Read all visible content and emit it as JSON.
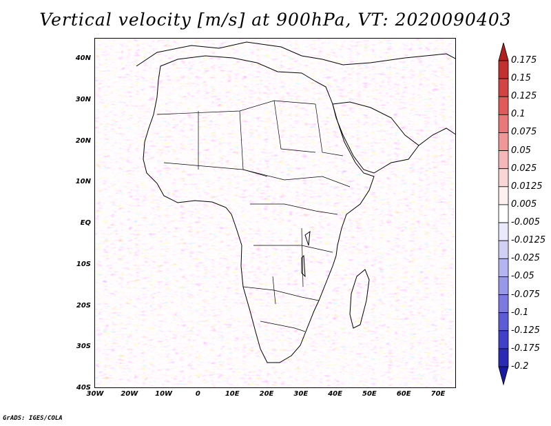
{
  "title": "Vertical velocity [m/s] at 900hPa, VT: 2020090403",
  "footer": "GrADS: IGES/COLA",
  "map": {
    "lat_labels": [
      "40N",
      "30N",
      "20N",
      "10N",
      "EQ",
      "10S",
      "20S",
      "30S",
      "40S"
    ],
    "lon_labels": [
      "30W",
      "20W",
      "10W",
      "0",
      "10E",
      "20E",
      "30E",
      "40E",
      "50E",
      "60E",
      "70E"
    ]
  },
  "colorbar": {
    "labels": [
      "0.175",
      "0.15",
      "0.125",
      "0.1",
      "0.075",
      "0.05",
      "0.025",
      "0.0125",
      "0.005",
      "-0.005",
      "-0.0125",
      "-0.025",
      "-0.05",
      "-0.075",
      "-0.1",
      "-0.125",
      "-0.175",
      "-0.2"
    ],
    "colors": [
      "#b11f1f",
      "#c23030",
      "#d24444",
      "#e05a5a",
      "#e97878",
      "#f09898",
      "#f5b8b8",
      "#f9d6d6",
      "#fdf0f0",
      "#ffffff",
      "#e9e9fb",
      "#d0d0f6",
      "#b4b4f0",
      "#9898ea",
      "#7a7ae0",
      "#5c5cd6",
      "#4040c8",
      "#2a2ab4",
      "#1a1aa0"
    ]
  }
}
